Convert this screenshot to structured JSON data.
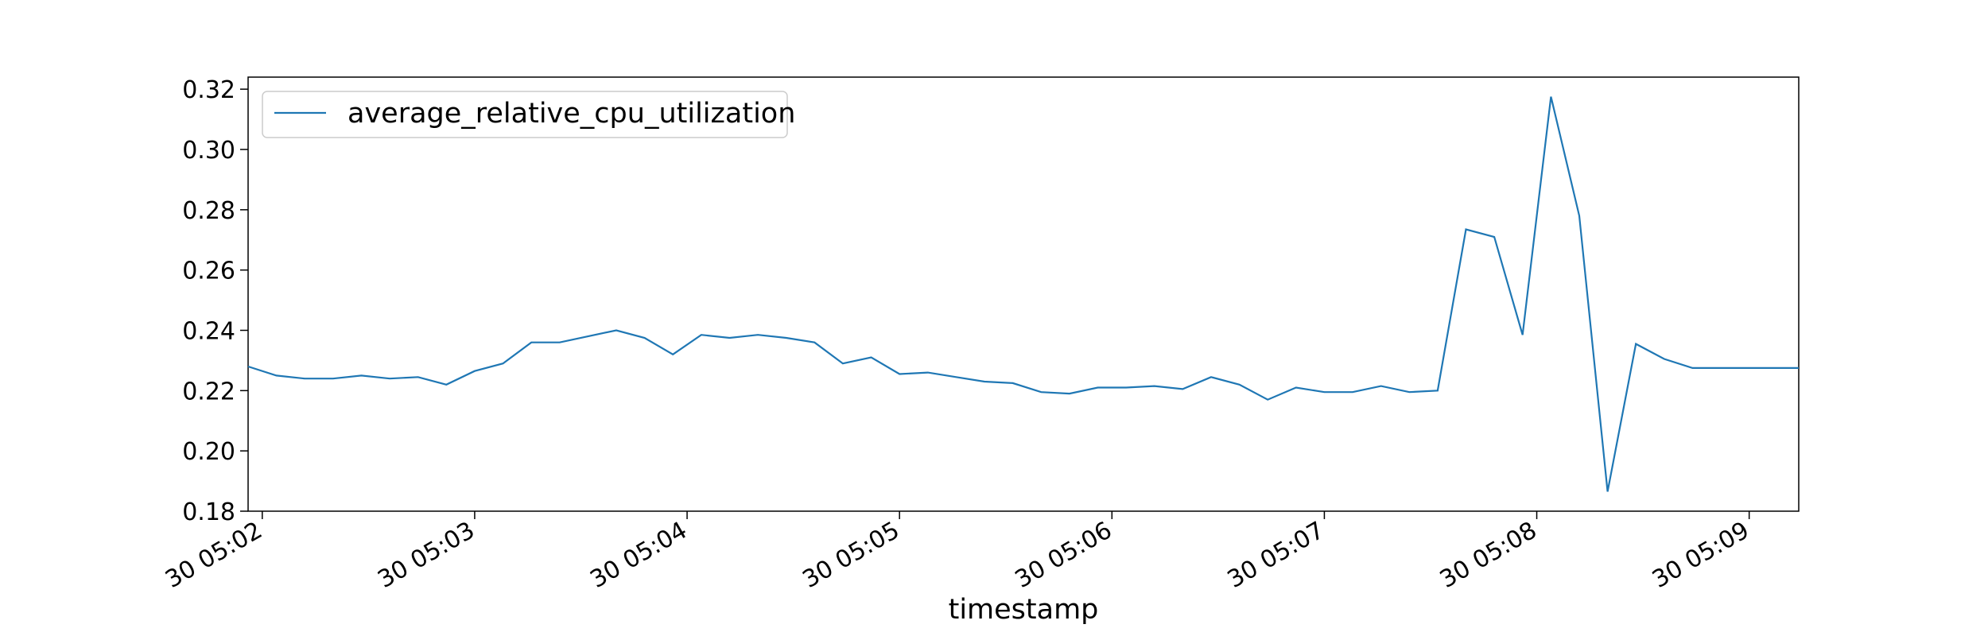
{
  "chart_data": {
    "type": "line",
    "title": "",
    "xlabel": "timestamp",
    "ylabel": "",
    "x_ticks": [
      "30 05:02",
      "30 05:03",
      "30 05:04",
      "30 05:05",
      "30 05:06",
      "30 05:07",
      "30 05:08",
      "30 05:09"
    ],
    "y_ticks": [
      "0.18",
      "0.20",
      "0.22",
      "0.24",
      "0.26",
      "0.28",
      "0.30",
      "0.32"
    ],
    "ylim": [
      0.18,
      0.324
    ],
    "xlim": [
      "30 05:01:56",
      "30 05:09:14"
    ],
    "grid": false,
    "legend_position": "top-left",
    "series": [
      {
        "name": "average_relative_cpu_utilization",
        "color": "#1f77b4",
        "x": [
          "30 05:01:56",
          "30 05:02:04",
          "30 05:02:12",
          "30 05:02:20",
          "30 05:02:28",
          "30 05:02:36",
          "30 05:02:44",
          "30 05:02:52",
          "30 05:03:00",
          "30 05:03:08",
          "30 05:03:16",
          "30 05:03:24",
          "30 05:03:32",
          "30 05:03:40",
          "30 05:03:48",
          "30 05:03:56",
          "30 05:04:04",
          "30 05:04:12",
          "30 05:04:20",
          "30 05:04:28",
          "30 05:04:36",
          "30 05:04:44",
          "30 05:04:52",
          "30 05:05:00",
          "30 05:05:08",
          "30 05:05:16",
          "30 05:05:24",
          "30 05:05:32",
          "30 05:05:40",
          "30 05:05:48",
          "30 05:05:56",
          "30 05:06:04",
          "30 05:06:12",
          "30 05:06:20",
          "30 05:06:28",
          "30 05:06:36",
          "30 05:06:44",
          "30 05:06:52",
          "30 05:07:00",
          "30 05:07:08",
          "30 05:07:16",
          "30 05:07:24",
          "30 05:07:32",
          "30 05:07:40",
          "30 05:07:48",
          "30 05:07:56",
          "30 05:08:04",
          "30 05:08:12",
          "30 05:08:20",
          "30 05:08:28",
          "30 05:08:36",
          "30 05:08:44",
          "30 05:08:52",
          "30 05:09:00",
          "30 05:09:08",
          "30 05:09:14"
        ],
        "y": [
          0.228,
          0.225,
          0.224,
          0.224,
          0.225,
          0.224,
          0.2245,
          0.222,
          0.2265,
          0.229,
          0.236,
          0.236,
          0.238,
          0.24,
          0.2375,
          0.232,
          0.2385,
          0.2375,
          0.2385,
          0.2375,
          0.236,
          0.229,
          0.231,
          0.2255,
          0.226,
          0.2245,
          0.223,
          0.2225,
          0.2195,
          0.219,
          0.221,
          0.221,
          0.2215,
          0.2205,
          0.2245,
          0.222,
          0.217,
          0.221,
          0.2195,
          0.2195,
          0.2215,
          0.2195,
          0.22,
          0.2735,
          0.271,
          0.2385,
          0.3175,
          0.278,
          0.1865,
          0.2355,
          0.2305,
          0.2275,
          0.2275,
          0.2275,
          0.2275,
          0.2275
        ]
      }
    ]
  }
}
